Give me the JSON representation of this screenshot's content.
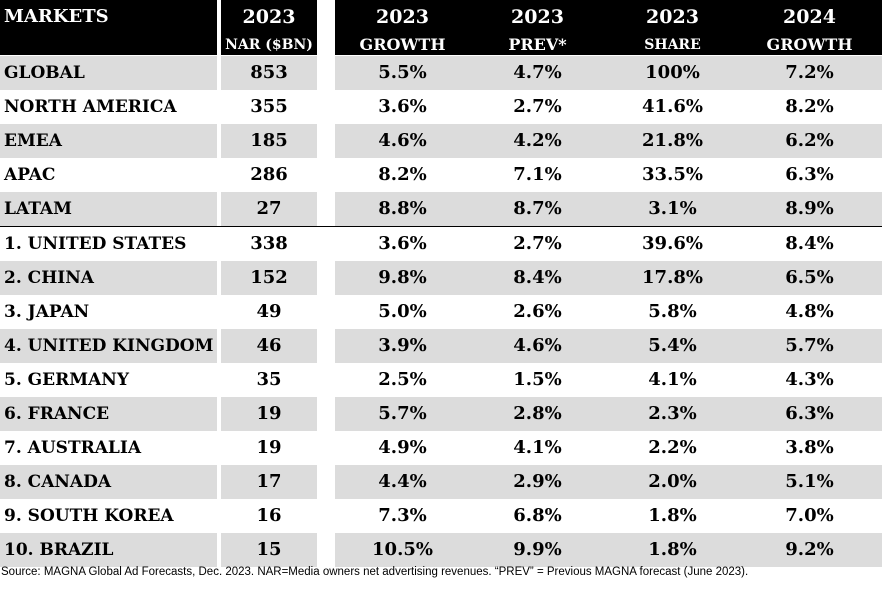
{
  "header": {
    "markets": "MARKETS",
    "nar_year": "2023",
    "nar_label": "NAR ($BN)",
    "growth_year": "2023",
    "growth_label": "GROWTH",
    "prev_year": "2023",
    "prev_label": "PREV*",
    "share_year": "2023",
    "share_label": "SHARE",
    "g24_year": "2024",
    "g24_label": "GROWTH"
  },
  "rows": [
    {
      "market": "GLOBAL",
      "nar": "853",
      "growth_2023": "5.5%",
      "prev": "4.7%",
      "share": "100%",
      "growth_2024": "7.2%"
    },
    {
      "market": "NORTH AMERICA",
      "nar": "355",
      "growth_2023": "3.6%",
      "prev": "2.7%",
      "share": "41.6%",
      "growth_2024": "8.2%"
    },
    {
      "market": "EMEA",
      "nar": "185",
      "growth_2023": "4.6%",
      "prev": "4.2%",
      "share": "21.8%",
      "growth_2024": "6.2%"
    },
    {
      "market": "APAC",
      "nar": "286",
      "growth_2023": "8.2%",
      "prev": "7.1%",
      "share": "33.5%",
      "growth_2024": "6.3%"
    },
    {
      "market": "LATAM",
      "nar": "27",
      "growth_2023": "8.8%",
      "prev": "8.7%",
      "share": "3.1%",
      "growth_2024": "8.9%"
    },
    {
      "market": "1. UNITED STATES",
      "nar": "338",
      "growth_2023": "3.6%",
      "prev": "2.7%",
      "share": "39.6%",
      "growth_2024": "8.4%"
    },
    {
      "market": "2. CHINA",
      "nar": "152",
      "growth_2023": "9.8%",
      "prev": "8.4%",
      "share": "17.8%",
      "growth_2024": "6.5%"
    },
    {
      "market": "3. JAPAN",
      "nar": "49",
      "growth_2023": "5.0%",
      "prev": "2.6%",
      "share": "5.8%",
      "growth_2024": "4.8%"
    },
    {
      "market": "4. UNITED KINGDOM",
      "nar": "46",
      "growth_2023": "3.9%",
      "prev": "4.6%",
      "share": "5.4%",
      "growth_2024": "5.7%"
    },
    {
      "market": "5. GERMANY",
      "nar": "35",
      "growth_2023": "2.5%",
      "prev": "1.5%",
      "share": "4.1%",
      "growth_2024": "4.3%"
    },
    {
      "market": "6. FRANCE",
      "nar": "19",
      "growth_2023": "5.7%",
      "prev": "2.8%",
      "share": "2.3%",
      "growth_2024": "6.3%"
    },
    {
      "market": "7. AUSTRALIA",
      "nar": "19",
      "growth_2023": "4.9%",
      "prev": "4.1%",
      "share": "2.2%",
      "growth_2024": "3.8%"
    },
    {
      "market": "8. CANADA",
      "nar": "17",
      "growth_2023": "4.4%",
      "prev": "2.9%",
      "share": "2.0%",
      "growth_2024": "5.1%"
    },
    {
      "market": "9. SOUTH KOREA",
      "nar": "16",
      "growth_2023": "7.3%",
      "prev": "6.8%",
      "share": "1.8%",
      "growth_2024": "7.0%"
    },
    {
      "market": "10. BRAZIL",
      "nar": "15",
      "growth_2023": "10.5%",
      "prev": "9.9%",
      "share": "1.8%",
      "growth_2024": "9.2%"
    }
  ],
  "footnote": "Source: MAGNA Global Ad Forecasts, Dec. 2023. NAR=Media owners net advertising revenues. “PREV” = Previous MAGNA forecast (June 2023)."
}
